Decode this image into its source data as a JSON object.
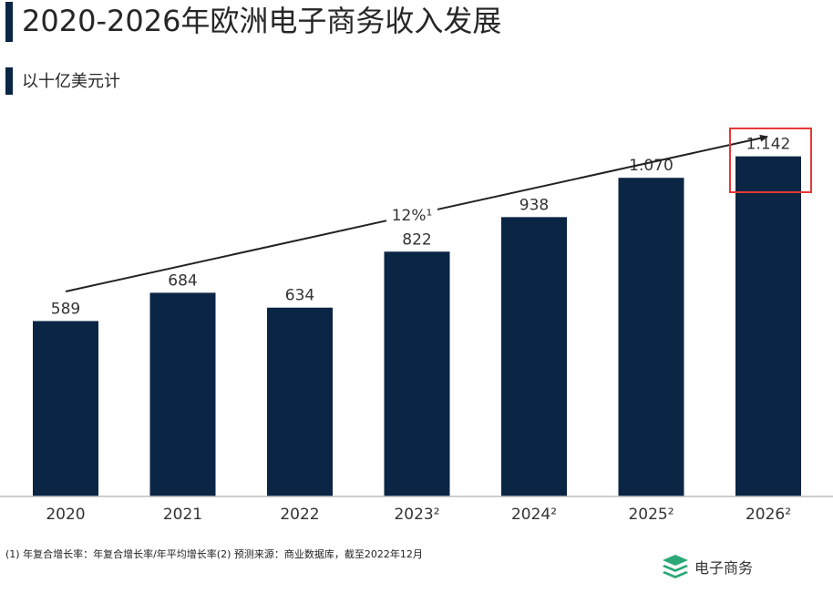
{
  "header": {
    "title": "2020-2026年欧洲电子商务收入发展",
    "subtitle": "以十亿美元计"
  },
  "chart_data": {
    "type": "bar",
    "title": "2020-2026年欧洲电子商务收入发展",
    "subtitle": "以十亿美元计",
    "categories": [
      "2020",
      "2021",
      "2022",
      "2023²",
      "2024²",
      "2025²",
      "2026²"
    ],
    "values": [
      589,
      684,
      634,
      822,
      938,
      1070,
      1142
    ],
    "value_labels": [
      "589",
      "684",
      "634",
      "822",
      "938",
      "1.070",
      "1.142"
    ],
    "ylim": [
      0,
      1300
    ],
    "grid": false,
    "bar_color": "#0b2545",
    "trend_label": "12%¹",
    "highlight": {
      "category": "2026²",
      "color": "#e53935"
    }
  },
  "footer": {
    "footnote": "(1) 年复合增长率：年复合增长率/年平均增长率(2) 预测来源：商业数据库，截至2022年12月",
    "brand": "电子商务",
    "brand_icon": "layers-icon",
    "brand_color": "#2aa876"
  }
}
